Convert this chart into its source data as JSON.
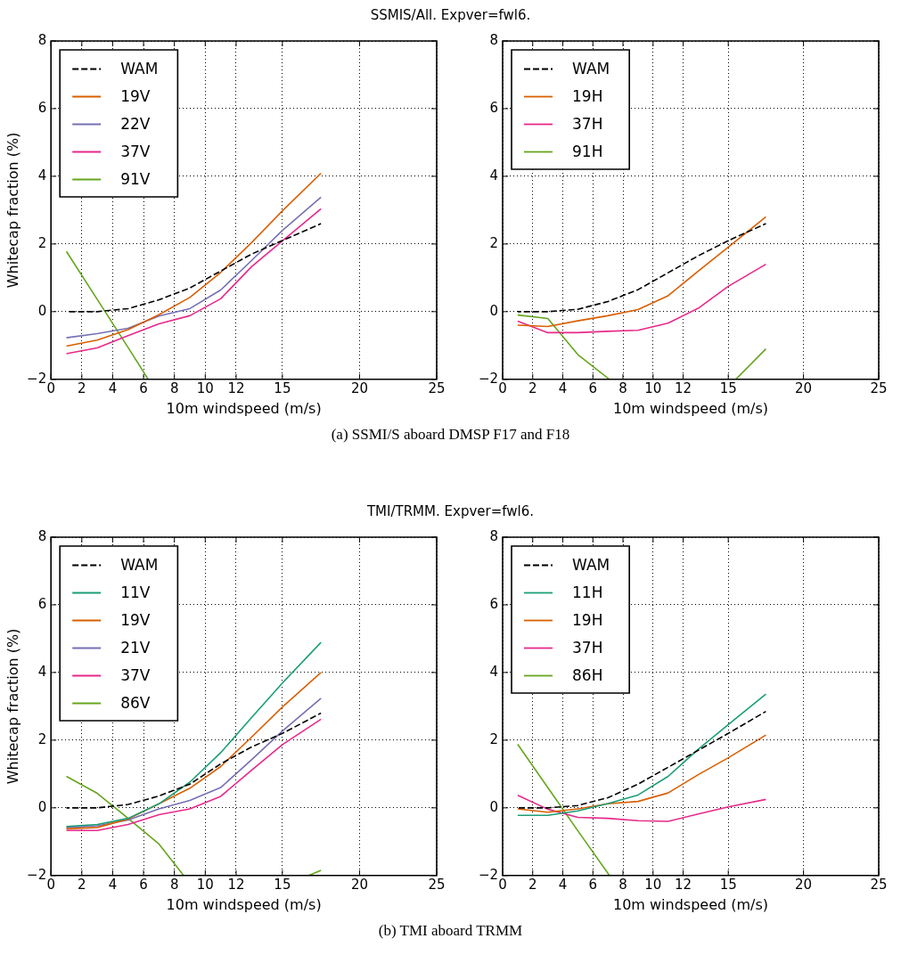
{
  "chart_data": [
    {
      "type": "line",
      "title": "SSMIS/All. Expver=fwl6.",
      "xlabel": "10m windspeed (m/s)",
      "ylabel": "Whitecap fraction (%)",
      "x": [
        1,
        3,
        5,
        7,
        9,
        11,
        13,
        15,
        17.5
      ],
      "xlim": [
        0,
        25
      ],
      "ylim": [
        -2,
        8
      ],
      "xticks": [
        0,
        2,
        4,
        6,
        8,
        10,
        12,
        15,
        20,
        25
      ],
      "yticks": [
        -2,
        0,
        2,
        4,
        6,
        8
      ],
      "grid": true,
      "legend": "top left",
      "marker": "none",
      "series": [
        {
          "name": "WAM",
          "color": "#000000",
          "line_style": "dashed",
          "values": [
            0,
            0,
            0.09,
            0.35,
            0.7,
            1.2,
            1.7,
            2.1,
            2.6
          ]
        },
        {
          "name": "19V",
          "color": "#d95f02",
          "values": [
            -1.02,
            -0.84,
            -0.53,
            -0.09,
            0.42,
            1.16,
            2.04,
            2.98,
            4.09
          ]
        },
        {
          "name": "22V",
          "color": "#7570b3",
          "values": [
            -0.77,
            -0.65,
            -0.49,
            -0.13,
            0.09,
            0.64,
            1.51,
            2.4,
            3.38
          ]
        },
        {
          "name": "37V",
          "color": "#e7298a",
          "values": [
            -1.24,
            -1.07,
            -0.71,
            -0.36,
            -0.12,
            0.38,
            1.33,
            2.09,
            3.04
          ]
        },
        {
          "name": "91V",
          "color": "#66a61e",
          "x": [
            1,
            3,
            5,
            6.3
          ],
          "values": [
            1.78,
            0.36,
            -1.06,
            -2
          ]
        }
      ]
    },
    {
      "type": "line",
      "xlabel": "10m windspeed (m/s)",
      "x": [
        1,
        3,
        5,
        7,
        9,
        11,
        13,
        15,
        17.5
      ],
      "xlim": [
        0,
        25
      ],
      "ylim": [
        -2,
        8
      ],
      "xticks": [
        0,
        2,
        4,
        6,
        8,
        10,
        12,
        15,
        20,
        25
      ],
      "yticks": [
        -2,
        0,
        2,
        4,
        6,
        8
      ],
      "grid": true,
      "legend": "top left",
      "marker": "none",
      "annotations": [
        "(a) SSMI/S aboard DMSP F17 and F18"
      ],
      "series": [
        {
          "name": "WAM",
          "color": "#000000",
          "line_style": "dashed",
          "values": [
            0,
            0,
            0.07,
            0.3,
            0.65,
            1.15,
            1.65,
            2.1,
            2.6
          ]
        },
        {
          "name": "19H",
          "color": "#d95f02",
          "values": [
            -0.4,
            -0.44,
            -0.27,
            -0.12,
            0.06,
            0.47,
            1.2,
            1.91,
            2.8
          ]
        },
        {
          "name": "37H",
          "color": "#e7298a",
          "values": [
            -0.28,
            -0.62,
            -0.62,
            -0.58,
            -0.55,
            -0.34,
            0.1,
            0.75,
            1.4
          ]
        },
        {
          "name": "91H",
          "color": "#66a61e",
          "x": [
            1,
            3,
            5,
            7.1,
            12,
            15.5,
            17.5
          ],
          "values": [
            -0.1,
            -0.2,
            -1.27,
            -2,
            null,
            -2,
            -1.1
          ]
        }
      ]
    },
    {
      "type": "line",
      "title": "TMI/TRMM. Expver=fwl6.",
      "xlabel": "10m windspeed (m/s)",
      "ylabel": "Whitecap fraction (%)",
      "x": [
        1,
        3,
        5,
        7,
        9,
        11,
        13,
        15,
        17.5
      ],
      "xlim": [
        0,
        25
      ],
      "ylim": [
        -2,
        8
      ],
      "xticks": [
        0,
        2,
        4,
        6,
        8,
        10,
        12,
        15,
        20,
        25
      ],
      "yticks": [
        -2,
        0,
        2,
        4,
        6,
        8
      ],
      "grid": true,
      "legend": "top left",
      "marker": "none",
      "series": [
        {
          "name": "WAM",
          "color": "#000000",
          "line_style": "dashed",
          "values": [
            0,
            0,
            0.1,
            0.35,
            0.7,
            1.3,
            1.8,
            2.2,
            2.8
          ]
        },
        {
          "name": "11V",
          "color": "#1b9e77",
          "values": [
            -0.55,
            -0.49,
            -0.31,
            0.12,
            0.76,
            1.63,
            2.67,
            3.69,
            4.89
          ]
        },
        {
          "name": "19V",
          "color": "#d95f02",
          "values": [
            -0.62,
            -0.58,
            -0.33,
            0.12,
            0.58,
            1.22,
            2.09,
            2.98,
            4
          ]
        },
        {
          "name": "21V",
          "color": "#7570b3",
          "values": [
            -0.58,
            -0.53,
            -0.36,
            -0.03,
            0.22,
            0.6,
            1.42,
            2.27,
            3.24
          ]
        },
        {
          "name": "37V",
          "color": "#e7298a",
          "values": [
            -0.67,
            -0.67,
            -0.49,
            -0.2,
            -0.03,
            0.34,
            1.11,
            1.87,
            2.62
          ]
        },
        {
          "name": "86V",
          "color": "#66a61e",
          "x": [
            1,
            3,
            5,
            7,
            8.6,
            12,
            16.7,
            17.5
          ],
          "values": [
            0.93,
            0.43,
            -0.31,
            -1.07,
            -2,
            null,
            -2,
            -1.85
          ]
        }
      ]
    },
    {
      "type": "line",
      "xlabel": "10m windspeed (m/s)",
      "x": [
        1,
        3,
        5,
        7,
        9,
        11,
        13,
        15,
        17.5
      ],
      "xlim": [
        0,
        25
      ],
      "ylim": [
        -2,
        8
      ],
      "xticks": [
        0,
        2,
        4,
        6,
        8,
        10,
        12,
        15,
        20,
        25
      ],
      "yticks": [
        -2,
        0,
        2,
        4,
        6,
        8
      ],
      "grid": true,
      "legend": "top left",
      "marker": "none",
      "annotations": [
        "(b) TMI aboard TRMM"
      ],
      "series": [
        {
          "name": "WAM",
          "color": "#000000",
          "line_style": "dashed",
          "values": [
            0,
            0,
            0.07,
            0.3,
            0.7,
            1.2,
            1.7,
            2.2,
            2.85
          ]
        },
        {
          "name": "11H",
          "color": "#1b9e77",
          "values": [
            -0.22,
            -0.22,
            -0.09,
            0.13,
            0.38,
            0.93,
            1.73,
            2.46,
            3.36
          ]
        },
        {
          "name": "19H",
          "color": "#d95f02",
          "values": [
            -0.03,
            -0.13,
            -0.03,
            0.12,
            0.19,
            0.44,
            0.98,
            1.48,
            2.15
          ]
        },
        {
          "name": "37H",
          "color": "#e7298a",
          "values": [
            0.37,
            -0.04,
            -0.28,
            -0.31,
            -0.38,
            -0.4,
            -0.18,
            0.03,
            0.25
          ]
        },
        {
          "name": "86H",
          "color": "#66a61e",
          "x": [
            1,
            3,
            5,
            7.1
          ],
          "values": [
            1.88,
            0.6,
            -0.68,
            -2
          ]
        }
      ]
    }
  ]
}
